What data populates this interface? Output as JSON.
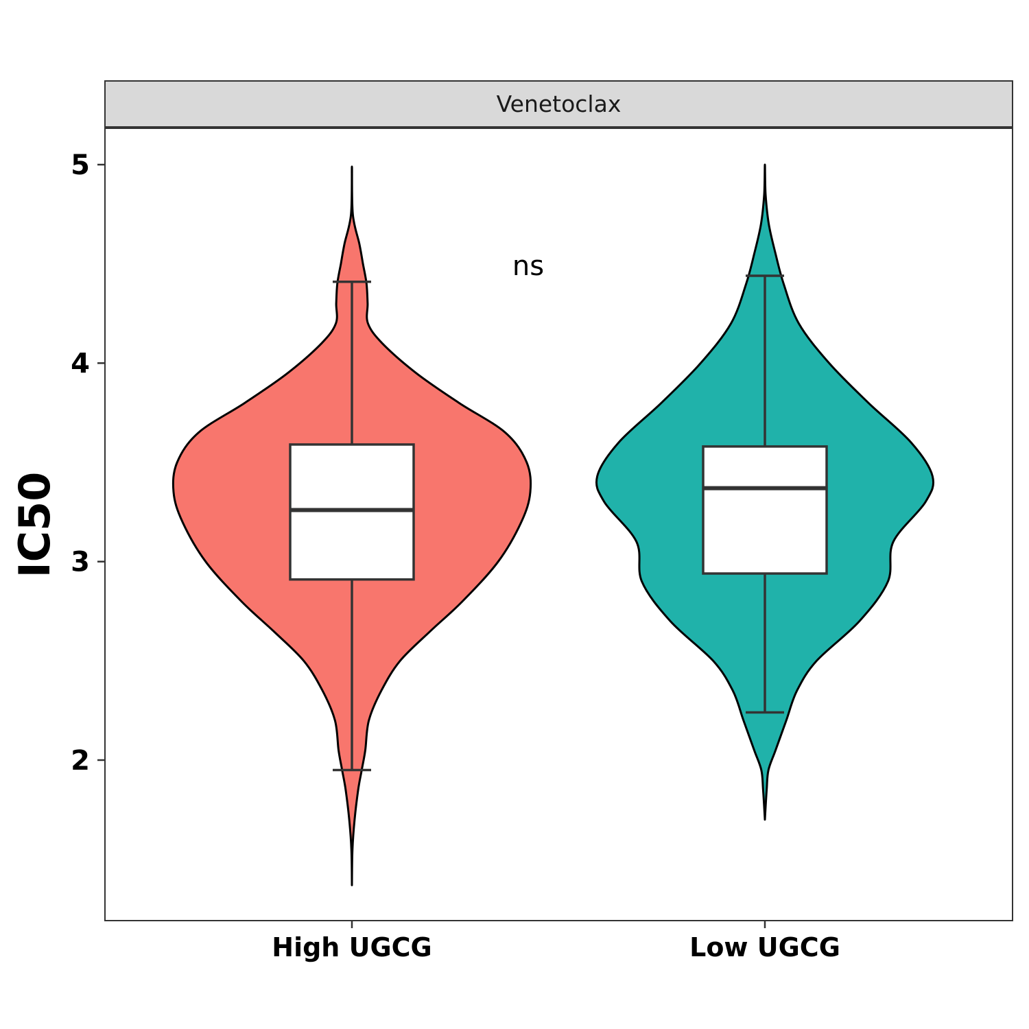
{
  "chart_data": {
    "type": "violin",
    "facet_label": "Venetoclax",
    "ylabel": "IC50",
    "xlabel": "",
    "ylim": [
      1.22,
      5.18
    ],
    "yticks": [
      2,
      3,
      4,
      5
    ],
    "yticks_text": [
      "2",
      "3",
      "4",
      "5"
    ],
    "annotation": "ns",
    "grid": false,
    "legend": "none",
    "groups": [
      {
        "name": "High UGCG",
        "color": "#F8766D",
        "box": {
          "whisker_low": 1.95,
          "q1": 2.91,
          "median": 3.26,
          "q3": 3.59,
          "whisker_high": 4.41
        },
        "density": [
          [
            1.37,
            0.0
          ],
          [
            1.55,
            0.003
          ],
          [
            1.7,
            0.015
          ],
          [
            1.85,
            0.035
          ],
          [
            1.95,
            0.055
          ],
          [
            2.05,
            0.075
          ],
          [
            2.2,
            0.095
          ],
          [
            2.35,
            0.165
          ],
          [
            2.5,
            0.27
          ],
          [
            2.65,
            0.44
          ],
          [
            2.8,
            0.62
          ],
          [
            3.0,
            0.82
          ],
          [
            3.2,
            0.95
          ],
          [
            3.35,
            1.0
          ],
          [
            3.5,
            0.98
          ],
          [
            3.65,
            0.86
          ],
          [
            3.8,
            0.6
          ],
          [
            3.95,
            0.36
          ],
          [
            4.1,
            0.17
          ],
          [
            4.2,
            0.09
          ],
          [
            4.3,
            0.088
          ],
          [
            4.4,
            0.082
          ],
          [
            4.5,
            0.062
          ],
          [
            4.6,
            0.042
          ],
          [
            4.75,
            0.005
          ],
          [
            4.99,
            0.0
          ]
        ]
      },
      {
        "name": "Low UGCG",
        "color": "#20B2AA",
        "box": {
          "whisker_low": 2.24,
          "q1": 2.94,
          "median": 3.37,
          "q3": 3.58,
          "whisker_high": 4.44
        },
        "density": [
          [
            1.7,
            0.0
          ],
          [
            1.85,
            0.01
          ],
          [
            1.95,
            0.02
          ],
          [
            2.05,
            0.06
          ],
          [
            2.2,
            0.12
          ],
          [
            2.35,
            0.18
          ],
          [
            2.5,
            0.29
          ],
          [
            2.7,
            0.53
          ],
          [
            2.9,
            0.69
          ],
          [
            3.1,
            0.72
          ],
          [
            3.3,
            0.9
          ],
          [
            3.43,
            0.94
          ],
          [
            3.6,
            0.82
          ],
          [
            3.8,
            0.58
          ],
          [
            4.0,
            0.36
          ],
          [
            4.2,
            0.19
          ],
          [
            4.4,
            0.105
          ],
          [
            4.55,
            0.06
          ],
          [
            4.7,
            0.022
          ],
          [
            4.85,
            0.004
          ],
          [
            5.0,
            0.0
          ]
        ]
      }
    ]
  }
}
